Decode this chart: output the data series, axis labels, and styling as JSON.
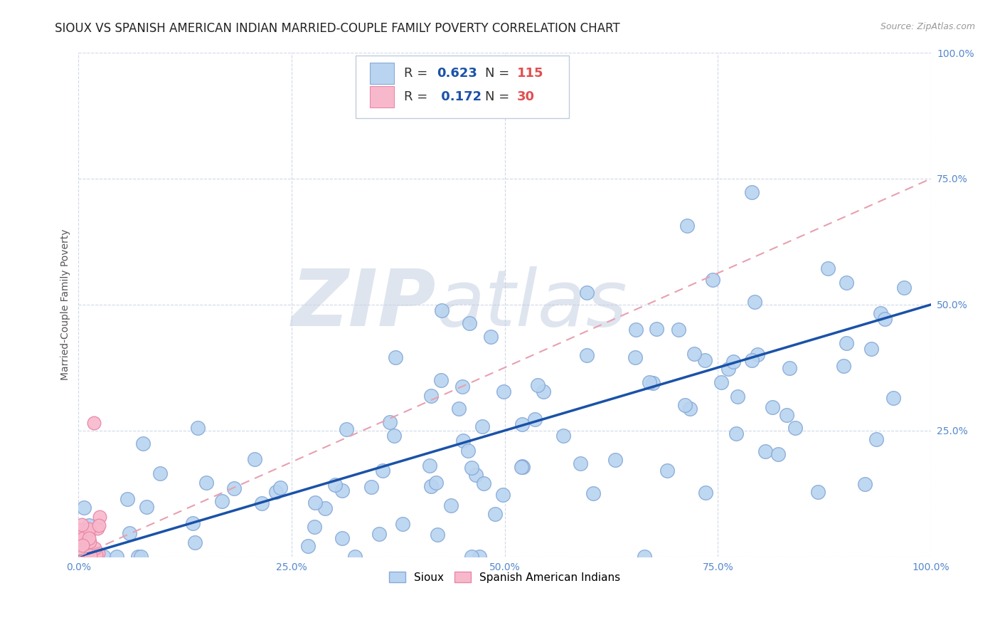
{
  "title": "SIOUX VS SPANISH AMERICAN INDIAN MARRIED-COUPLE FAMILY POVERTY CORRELATION CHART",
  "source": "Source: ZipAtlas.com",
  "ylabel": "Married-Couple Family Poverty",
  "xlim": [
    0,
    1
  ],
  "ylim": [
    0,
    1
  ],
  "xticks": [
    0.0,
    0.25,
    0.5,
    0.75,
    1.0
  ],
  "yticks": [
    0.0,
    0.25,
    0.5,
    0.75,
    1.0
  ],
  "xticklabels": [
    "0.0%",
    "25.0%",
    "50.0%",
    "75.0%",
    "100.0%"
  ],
  "yticklabels": [
    "",
    "25.0%",
    "50.0%",
    "75.0%",
    "100.0%"
  ],
  "sioux_R": 0.623,
  "sioux_N": 115,
  "spanish_R": 0.172,
  "spanish_N": 30,
  "sioux_color": "#b8d4f0",
  "sioux_edge_color": "#88aad8",
  "spanish_color": "#f8b8cc",
  "spanish_edge_color": "#e888a8",
  "regression_line_color": "#1a52a8",
  "regression_dashed_color": "#e8a0b0",
  "background_color": "#ffffff",
  "grid_color": "#d0d8e8",
  "title_fontsize": 12,
  "axis_label_fontsize": 10,
  "tick_fontsize": 10,
  "sioux_color_legend": "#b8d4f0",
  "sioux_edge_legend": "#88aad8",
  "spanish_color_legend": "#f8b8cc",
  "spanish_edge_legend": "#e888a8",
  "legend_R_color": "#1a52a8",
  "legend_N_color": "#e05050"
}
